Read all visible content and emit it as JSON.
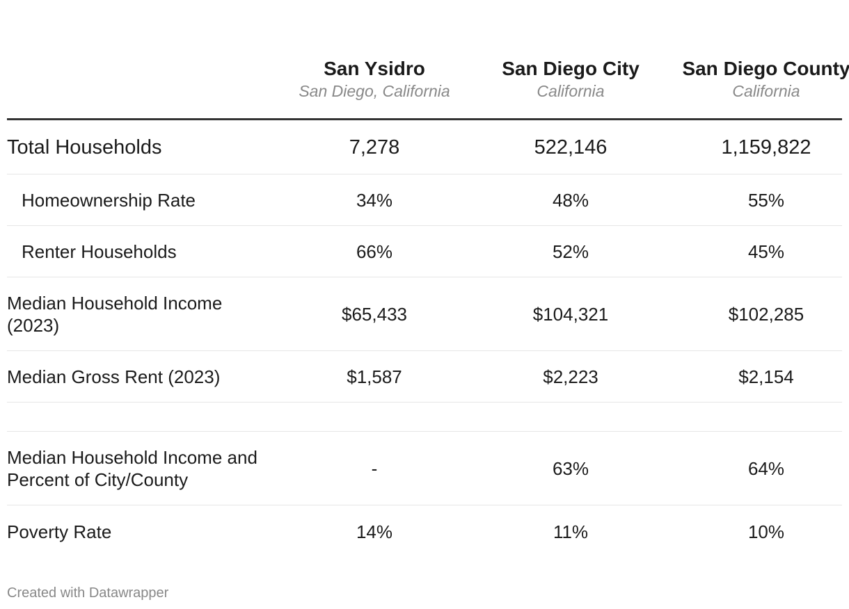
{
  "chart_data": {
    "type": "table",
    "columns": [
      {
        "name": "San Ysidro",
        "sub": "San Diego, California"
      },
      {
        "name": "San Diego City",
        "sub": "California"
      },
      {
        "name": "San Diego County",
        "sub": "California"
      }
    ],
    "rows": [
      {
        "label": "Total Households",
        "values": [
          "7,278",
          "522,146",
          "1,159,822"
        ]
      },
      {
        "label": "Homeownership Rate",
        "values": [
          "34%",
          "48%",
          "55%"
        ]
      },
      {
        "label": "Renter Households",
        "values": [
          "66%",
          "52%",
          "45%"
        ]
      },
      {
        "label": "Median Household Income (2023)",
        "values": [
          "$65,433",
          "$104,321",
          "$102,285"
        ]
      },
      {
        "label": "Median Gross Rent (2023)",
        "values": [
          "$1,587",
          "$2,223",
          "$2,154"
        ]
      },
      {
        "label": "",
        "values": [
          "",
          "",
          ""
        ]
      },
      {
        "label": "Median Household Income and Percent of City/County",
        "values": [
          "-",
          "63%",
          "64%"
        ]
      },
      {
        "label": "Poverty Rate",
        "values": [
          "14%",
          "11%",
          "10%"
        ]
      }
    ]
  },
  "footer": {
    "credit": "Created with Datawrapper"
  }
}
